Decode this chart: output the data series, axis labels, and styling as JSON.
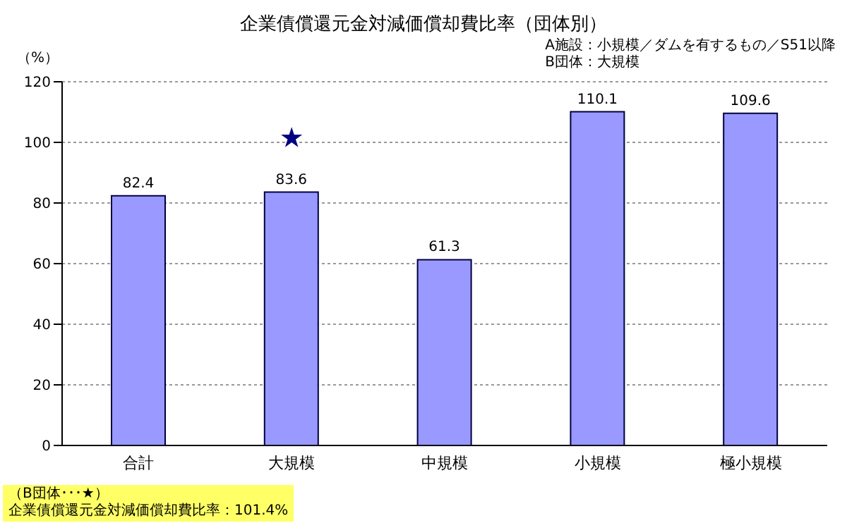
{
  "chart_data": {
    "type": "bar",
    "title": "企業債償還元金対減価償却費比率（団体別）",
    "ylabel": "（%）",
    "categories": [
      "合計",
      "大規模",
      "中規模",
      "小規模",
      "極小規模"
    ],
    "series": [
      {
        "color": "#9999ff",
        "values": [
          82.4,
          83.6,
          61.3,
          110.1,
          109.6
        ],
        "value_labels": [
          "82.4",
          "83.6",
          "61.3",
          "110.1",
          "109.6"
        ]
      },
      {
        "type": "scatter",
        "color": "#000080",
        "x": [
          "大規模"
        ],
        "values": [
          101.4
        ],
        "marker": "star"
      }
    ],
    "ylim": [
      0,
      120
    ],
    "yticks": [
      0,
      20,
      40,
      60,
      80,
      100,
      120
    ],
    "grid": "y",
    "legend": false,
    "annotations": [
      "A施設：小規模／ダムを有するもの／S51以降",
      "B団体：大規模",
      "（B団体･･･★）",
      "企業債償還元金対減価償却費比率：101.4%"
    ]
  }
}
